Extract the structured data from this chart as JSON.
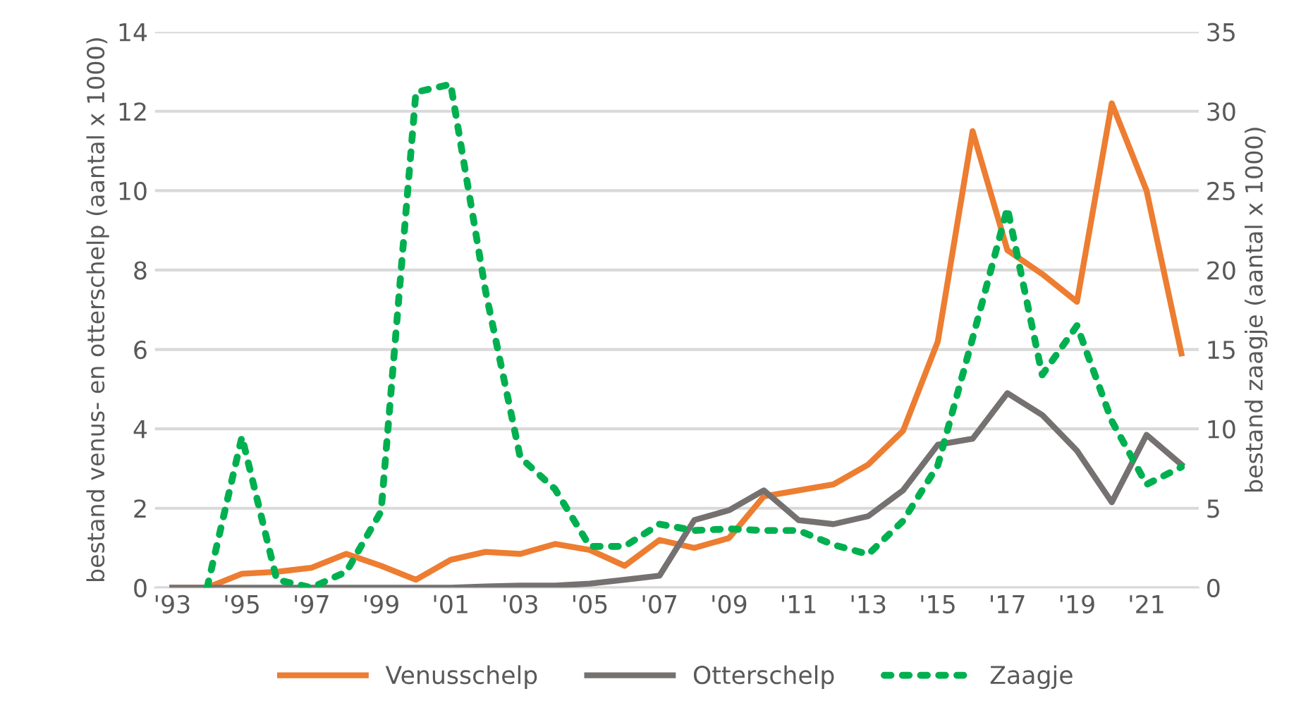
{
  "chart_data": {
    "type": "line",
    "x": [
      1993,
      1994,
      1995,
      1996,
      1997,
      1998,
      1999,
      2000,
      2001,
      2002,
      2003,
      2004,
      2005,
      2006,
      2007,
      2008,
      2009,
      2010,
      2011,
      2012,
      2013,
      2014,
      2015,
      2016,
      2017,
      2018,
      2019,
      2020,
      2021,
      2022
    ],
    "series": [
      {
        "name": "Venusschelp",
        "color": "#ed7d31",
        "line_style": "solid",
        "values": [
          0,
          0,
          0.35,
          0.4,
          0.5,
          0.85,
          0.55,
          0.2,
          0.7,
          0.9,
          0.85,
          1.1,
          0.95,
          0.55,
          1.2,
          1.0,
          1.25,
          2.3,
          2.45,
          2.6,
          3.1,
          3.95,
          6.2,
          11.5,
          8.5,
          7.9,
          7.2,
          12.2,
          10.0,
          5.9
        ]
      },
      {
        "name": "Otterschelp",
        "color": "#767171",
        "line_style": "solid",
        "values": [
          0,
          0,
          0,
          0,
          0,
          0,
          0,
          0,
          0,
          0.03,
          0.05,
          0.05,
          0.1,
          0.2,
          0.3,
          1.7,
          1.95,
          2.45,
          1.7,
          1.6,
          1.8,
          2.45,
          3.6,
          3.75,
          4.9,
          4.35,
          3.45,
          2.15,
          3.85,
          3.1
        ]
      },
      {
        "name": "Zaagje",
        "color": "#00b050",
        "line_style": "dotted",
        "axis": "y2",
        "values": [
          null,
          0,
          9.5,
          0.5,
          0,
          1.0,
          4.8,
          31.2,
          31.7,
          18.7,
          8.2,
          6.2,
          2.6,
          2.6,
          4.0,
          3.6,
          3.7,
          3.6,
          3.6,
          2.7,
          2.1,
          4.2,
          7.7,
          15.7,
          23.9,
          13.4,
          16.5,
          10.5,
          6.5,
          7.6
        ]
      }
    ],
    "ylabel": "bestand venus- en otterschelp (aantal x 1000)",
    "y2label": "bestand zaagje (aantal x 1000)",
    "xlim": [
      1992.5,
      2022.5
    ],
    "xticks": [
      {
        "value": 1993,
        "label": "'93"
      },
      {
        "value": 1995,
        "label": "'95"
      },
      {
        "value": 1997,
        "label": "'97"
      },
      {
        "value": 1999,
        "label": "'99"
      },
      {
        "value": 2001,
        "label": "'01"
      },
      {
        "value": 2003,
        "label": "'03"
      },
      {
        "value": 2005,
        "label": "'05"
      },
      {
        "value": 2007,
        "label": "'07"
      },
      {
        "value": 2009,
        "label": "'09"
      },
      {
        "value": 2011,
        "label": "'11"
      },
      {
        "value": 2013,
        "label": "'13"
      },
      {
        "value": 2015,
        "label": "'15"
      },
      {
        "value": 2017,
        "label": "'17"
      },
      {
        "value": 2019,
        "label": "'19"
      },
      {
        "value": 2021,
        "label": "'21"
      }
    ],
    "ylim": [
      0,
      14
    ],
    "yticks": [
      0,
      2,
      4,
      6,
      8,
      10,
      12,
      14
    ],
    "y2lim": [
      0,
      35
    ],
    "y2ticks": [
      0,
      5,
      10,
      15,
      20,
      25,
      30,
      35
    ],
    "grid": "y",
    "legend": "bottom",
    "marker": "none"
  }
}
